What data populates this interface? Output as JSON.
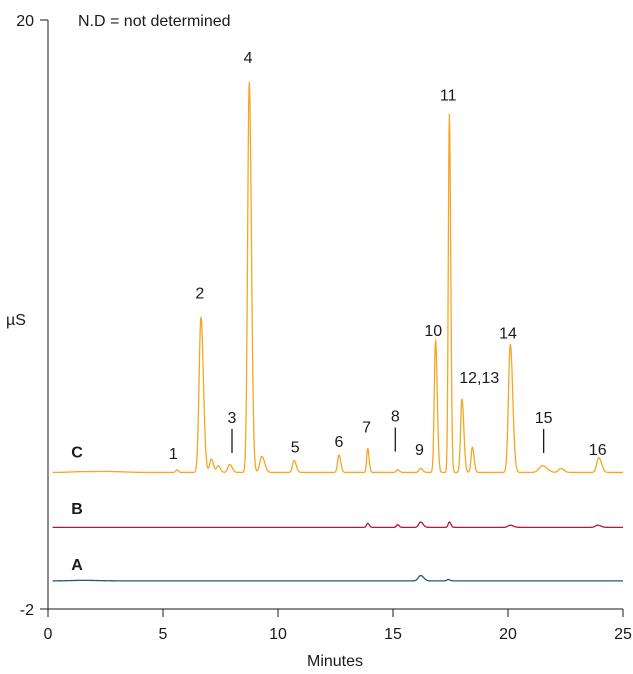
{
  "chart_data": {
    "type": "line",
    "title": "",
    "annotation": "N.D = not determined",
    "xlabel": "Minutes",
    "ylabel": "µS",
    "xlim": [
      0,
      25
    ],
    "ylim": [
      -2,
      20
    ],
    "x_ticks": [
      "0",
      "5",
      "10",
      "15",
      "20",
      "25"
    ],
    "x_tick_values": [
      0,
      5,
      10,
      15,
      20,
      25
    ],
    "y_ticks": [
      "20",
      "-2"
    ],
    "y_tick_values": [
      20,
      -2
    ],
    "grid": false,
    "series": [
      {
        "name": "C",
        "color": "#f5a623",
        "baseline": 3.1,
        "peaks": [
          {
            "t": 1.5,
            "h": 0.03,
            "w": 0.5
          },
          {
            "t": 2.7,
            "h": 0.03,
            "w": 0.5
          },
          {
            "t": 5.6,
            "h": 0.1,
            "w": 0.05
          },
          {
            "t": 6.65,
            "h": 5.8,
            "w": 0.08
          },
          {
            "t": 7.1,
            "h": 0.5,
            "w": 0.07
          },
          {
            "t": 7.4,
            "h": 0.25,
            "w": 0.07
          },
          {
            "t": 7.9,
            "h": 0.3,
            "w": 0.08
          },
          {
            "t": 8.75,
            "h": 14.6,
            "w": 0.07
          },
          {
            "t": 9.3,
            "h": 0.6,
            "w": 0.09
          },
          {
            "t": 10.7,
            "h": 0.45,
            "w": 0.07
          },
          {
            "t": 12.65,
            "h": 0.65,
            "w": 0.06
          },
          {
            "t": 13.9,
            "h": 0.9,
            "w": 0.045
          },
          {
            "t": 15.2,
            "h": 0.1,
            "w": 0.06
          },
          {
            "t": 16.2,
            "h": 0.15,
            "w": 0.07
          },
          {
            "t": 16.85,
            "h": 4.95,
            "w": 0.055
          },
          {
            "t": 17.45,
            "h": 13.4,
            "w": 0.045
          },
          {
            "t": 18.0,
            "h": 2.75,
            "w": 0.06
          },
          {
            "t": 18.45,
            "h": 0.95,
            "w": 0.055
          },
          {
            "t": 20.1,
            "h": 4.8,
            "w": 0.08
          },
          {
            "t": 21.5,
            "h": 0.25,
            "w": 0.15
          },
          {
            "t": 22.3,
            "h": 0.15,
            "w": 0.1
          },
          {
            "t": 23.95,
            "h": 0.55,
            "w": 0.09
          }
        ]
      },
      {
        "name": "B",
        "color": "#b5163a",
        "baseline": 1.05,
        "peaks": [
          {
            "t": 13.9,
            "h": 0.15,
            "w": 0.05
          },
          {
            "t": 15.2,
            "h": 0.1,
            "w": 0.05
          },
          {
            "t": 16.2,
            "h": 0.2,
            "w": 0.08
          },
          {
            "t": 17.45,
            "h": 0.2,
            "w": 0.05
          },
          {
            "t": 20.1,
            "h": 0.08,
            "w": 0.1
          },
          {
            "t": 23.9,
            "h": 0.08,
            "w": 0.1
          }
        ]
      },
      {
        "name": "A",
        "color": "#1e5a73",
        "baseline": -0.95,
        "peaks": [
          {
            "t": 1.5,
            "h": 0.02,
            "w": 0.5
          },
          {
            "t": 16.2,
            "h": 0.2,
            "w": 0.1
          },
          {
            "t": 17.4,
            "h": 0.05,
            "w": 0.06
          }
        ]
      }
    ],
    "peak_labels": [
      {
        "text": "1",
        "t": 5.45,
        "y": 3.6
      },
      {
        "text": "2",
        "t": 6.6,
        "y": 9.6
      },
      {
        "text": "3",
        "t": 8.0,
        "y": 4.95,
        "marker": true
      },
      {
        "text": "4",
        "t": 8.7,
        "y": 18.4
      },
      {
        "text": "5",
        "t": 10.75,
        "y": 3.85
      },
      {
        "text": "6",
        "t": 12.65,
        "y": 4.05
      },
      {
        "text": "7",
        "t": 13.85,
        "y": 4.6
      },
      {
        "text": "8",
        "t": 15.1,
        "y": 5.0,
        "marker": true
      },
      {
        "text": "9",
        "t": 16.15,
        "y": 3.75
      },
      {
        "text": "10",
        "t": 16.75,
        "y": 8.2
      },
      {
        "text": "11",
        "t": 17.4,
        "y": 17.0
      },
      {
        "text": "12,13",
        "t": 18.75,
        "y": 6.45
      },
      {
        "text": "14",
        "t": 20.0,
        "y": 8.1
      },
      {
        "text": "15",
        "t": 21.55,
        "y": 4.95,
        "marker": true
      },
      {
        "text": "16",
        "t": 23.9,
        "y": 3.75
      }
    ],
    "trace_labels": [
      {
        "text": "C",
        "y": 3.65
      },
      {
        "text": "B",
        "y": 1.55
      },
      {
        "text": "A",
        "y": -0.55
      }
    ]
  }
}
